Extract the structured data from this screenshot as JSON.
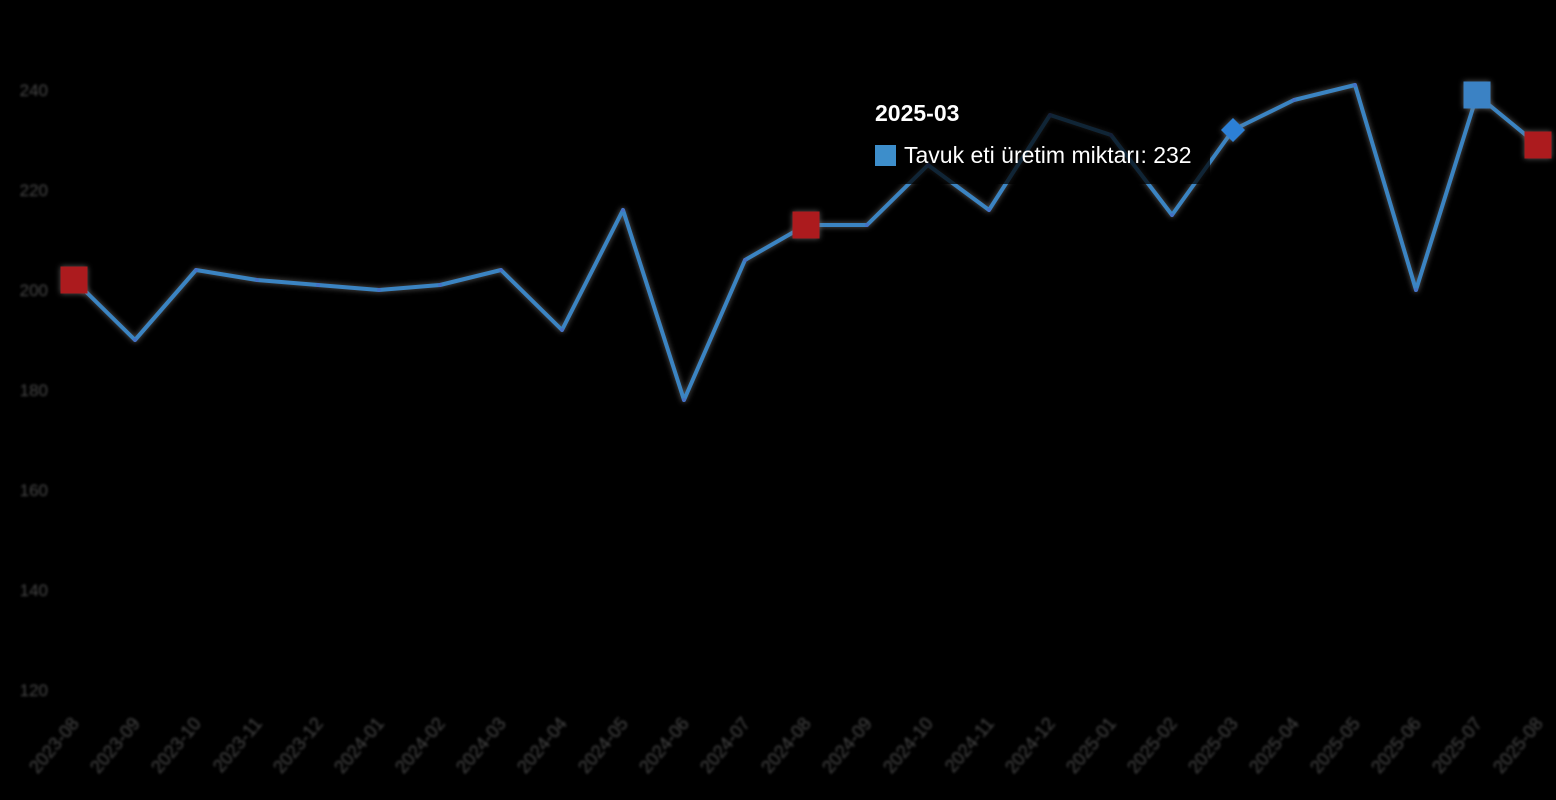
{
  "page": {
    "background": "#000000"
  },
  "tooltip": {
    "title": "2025-03",
    "text": "Tavuk eti üretim miktarı: 232",
    "swatch_color": "#3d8ecb"
  },
  "colors": {
    "background": "#000000",
    "line": "#3b84c2",
    "red_marker": "#ac1b1e",
    "blue_marker": "#3b82c4",
    "hover_point": "#2c80d6",
    "axis_label": "#474747",
    "tooltip_text": "#ffffff"
  },
  "chart_data": {
    "type": "line",
    "title": "",
    "xlabel": "",
    "ylabel": "",
    "grid": false,
    "legend_position": "none",
    "ylim": [
      120,
      245
    ],
    "y_ticks": [
      240,
      220,
      200,
      180,
      160,
      140,
      120
    ],
    "categories": [
      "2023-08",
      "2023-09",
      "2023-10",
      "2023-11",
      "2023-12",
      "2024-01",
      "2024-02",
      "2024-03",
      "2024-04",
      "2024-05",
      "2024-06",
      "2024-07",
      "2024-08",
      "2024-09",
      "2024-10",
      "2024-11",
      "2024-12",
      "2025-01",
      "2025-02",
      "2025-03",
      "2025-04",
      "2025-05",
      "2025-06",
      "2025-07",
      "2025-08"
    ],
    "series": [
      {
        "name": "Tavuk eti üretim miktarı",
        "color": "#3b84c2",
        "values": [
          202,
          190,
          204,
          202,
          201,
          200,
          201,
          204,
          192,
          216,
          178,
          206,
          213,
          213,
          225,
          216,
          235,
          231,
          215,
          232,
          238,
          241,
          200,
          239,
          229
        ]
      }
    ],
    "hover_point": {
      "index": 19,
      "category": "2025-03",
      "value": 232,
      "shape": "diamond",
      "color": "#2c80d6"
    },
    "highlight_markers": [
      {
        "index": 0,
        "category": "2023-08",
        "shape": "square",
        "color": "#ac1b1e"
      },
      {
        "index": 12,
        "category": "2024-08",
        "shape": "square",
        "color": "#ac1b1e"
      },
      {
        "index": 23,
        "category": "2025-07",
        "shape": "square",
        "color": "#3b82c4"
      },
      {
        "index": 24,
        "category": "2025-08",
        "shape": "square",
        "color": "#ac1b1e"
      }
    ]
  }
}
